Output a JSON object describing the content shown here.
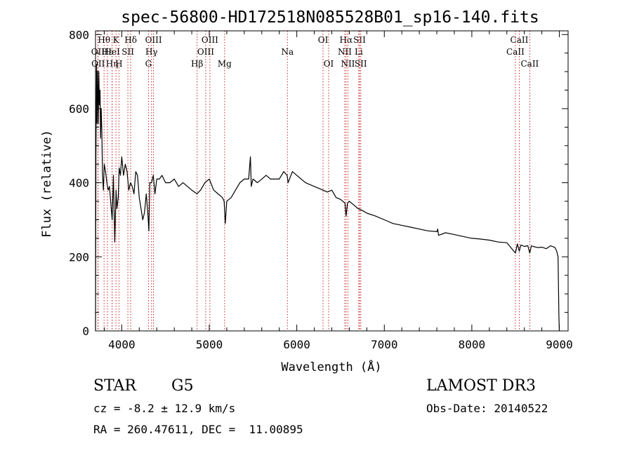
{
  "chart_data": {
    "type": "line",
    "title": "spec-56800-HD172518N085528B01_sp16-140.fits",
    "xlabel": "Wavelength (Å)",
    "ylabel": "Flux (relative)",
    "xlim": [
      3700,
      9100
    ],
    "ylim": [
      0,
      810
    ],
    "xticks": [
      4000,
      5000,
      6000,
      7000,
      8000,
      9000
    ],
    "yticks": [
      0,
      200,
      400,
      600,
      800
    ],
    "series": [
      {
        "name": "spectrum",
        "x": [
          3700,
          3705,
          3712,
          3718,
          3722,
          3728,
          3733,
          3738,
          3745,
          3752,
          3758,
          3765,
          3772,
          3780,
          3790,
          3800,
          3815,
          3830,
          3845,
          3860,
          3880,
          3890,
          3905,
          3920,
          3935,
          3945,
          3960,
          3970,
          3985,
          4000,
          4020,
          4040,
          4060,
          4080,
          4100,
          4120,
          4140,
          4160,
          4180,
          4200,
          4220,
          4240,
          4260,
          4280,
          4300,
          4310,
          4320,
          4340,
          4360,
          4380,
          4400,
          4430,
          4460,
          4500,
          4550,
          4600,
          4650,
          4700,
          4750,
          4800,
          4860,
          4900,
          4950,
          5000,
          5050,
          5100,
          5150,
          5170,
          5183,
          5200,
          5250,
          5300,
          5350,
          5400,
          5450,
          5470,
          5480,
          5500,
          5550,
          5600,
          5650,
          5700,
          5750,
          5800,
          5850,
          5890,
          5900,
          5950,
          6000,
          6050,
          6100,
          6150,
          6200,
          6250,
          6300,
          6350,
          6400,
          6450,
          6500,
          6550,
          6563,
          6580,
          6600,
          6650,
          6700,
          6750,
          6800,
          6900,
          7000,
          7100,
          7200,
          7300,
          7400,
          7500,
          7600,
          7610,
          7620,
          7700,
          7800,
          7900,
          8000,
          8100,
          8200,
          8300,
          8400,
          8498,
          8520,
          8542,
          8560,
          8600,
          8640,
          8662,
          8680,
          8700,
          8750,
          8800,
          8850,
          8900,
          8950,
          8970,
          8985,
          8990,
          8995,
          9000
        ],
        "values": [
          0,
          480,
          720,
          560,
          700,
          640,
          560,
          700,
          610,
          650,
          520,
          600,
          540,
          420,
          380,
          450,
          430,
          400,
          380,
          390,
          330,
          300,
          420,
          240,
          380,
          330,
          360,
          440,
          420,
          470,
          420,
          450,
          430,
          380,
          400,
          390,
          370,
          430,
          420,
          360,
          330,
          300,
          320,
          370,
          310,
          270,
          400,
          400,
          420,
          370,
          410,
          410,
          420,
          400,
          400,
          410,
          390,
          400,
          390,
          380,
          370,
          380,
          400,
          410,
          380,
          370,
          360,
          350,
          290,
          350,
          360,
          380,
          400,
          410,
          410,
          470,
          390,
          410,
          400,
          410,
          420,
          410,
          410,
          410,
          430,
          420,
          400,
          430,
          420,
          410,
          400,
          395,
          390,
          385,
          380,
          375,
          380,
          360,
          355,
          345,
          310,
          345,
          350,
          340,
          330,
          325,
          318,
          310,
          300,
          290,
          285,
          280,
          275,
          270,
          268,
          275,
          258,
          265,
          260,
          255,
          250,
          248,
          245,
          240,
          238,
          210,
          235,
          215,
          232,
          228,
          230,
          210,
          230,
          228,
          225,
          226,
          222,
          230,
          225,
          215,
          200,
          120,
          40,
          0
        ]
      }
    ],
    "line_markers": [
      {
        "label": "Hθ",
        "x": 3798,
        "row": 1
      },
      {
        "label": "OII",
        "x": 3727,
        "row": 2
      },
      {
        "label": "OII",
        "x": 3730,
        "row": 3
      },
      {
        "label": "Hε",
        "x": 3835,
        "row": 2
      },
      {
        "label": "Hη",
        "x": 3889,
        "row": 3
      },
      {
        "label": "K",
        "x": 3934,
        "row": 1
      },
      {
        "label": "HeI",
        "x": 3890,
        "row": 2
      },
      {
        "label": "H",
        "x": 3968,
        "row": 3
      },
      {
        "label": "SII",
        "x": 4070,
        "row": 2
      },
      {
        "label": "Hδ",
        "x": 4102,
        "row": 1
      },
      {
        "label": "OIII",
        "x": 4363,
        "row": 1
      },
      {
        "label": "Hγ",
        "x": 4340,
        "row": 2
      },
      {
        "label": "G",
        "x": 4305,
        "row": 3
      },
      {
        "label": "Hβ",
        "x": 4861,
        "row": 3
      },
      {
        "label": "OIII",
        "x": 5007,
        "row": 1
      },
      {
        "label": "OIII",
        "x": 4959,
        "row": 2
      },
      {
        "label": "Mg",
        "x": 5175,
        "row": 3
      },
      {
        "label": "Na",
        "x": 5893,
        "row": 2
      },
      {
        "label": "OI",
        "x": 6300,
        "row": 1
      },
      {
        "label": "OI",
        "x": 6364,
        "row": 3
      },
      {
        "label": "Hα",
        "x": 6563,
        "row": 1
      },
      {
        "label": "NII",
        "x": 6548,
        "row": 2
      },
      {
        "label": "NII",
        "x": 6584,
        "row": 3
      },
      {
        "label": "SII",
        "x": 6717,
        "row": 1
      },
      {
        "label": "Li",
        "x": 6708,
        "row": 2
      },
      {
        "label": "SII",
        "x": 6731,
        "row": 3
      },
      {
        "label": "CaII",
        "x": 8542,
        "row": 1
      },
      {
        "label": "CaII",
        "x": 8498,
        "row": 2
      },
      {
        "label": "CaII",
        "x": 8662,
        "row": 3
      }
    ]
  },
  "footer": {
    "object_class": "STAR",
    "subclass": "G5",
    "survey": "LAMOST DR3",
    "redshift_text": "cz = -8.2 ± 12.9 km/s",
    "obs_date_text": "Obs-Date: 20140522",
    "coords_text": "RA = 260.47611, DEC =  11.00895"
  },
  "colors": {
    "spectrum": "#000000",
    "marker_line": "#cc2222",
    "axis": "#000000"
  }
}
